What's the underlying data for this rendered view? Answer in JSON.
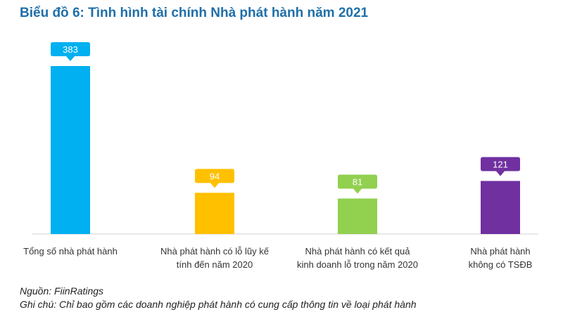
{
  "title": "Biểu đồ 6: Tình hình tài chính Nhà phát hành năm 2021",
  "source": "Nguồn: FiinRatings",
  "remark": "Ghi chú: Chỉ bao gồm các doanh nghiệp phát hành có cung cấp thông tin về loại phát hành",
  "chart_data": {
    "type": "bar",
    "title": "Biểu đồ 6: Tình hình tài chính Nhà phát hành năm 2021",
    "categories": [
      [
        "Tổng số nhà phát hành"
      ],
      [
        "Nhà phát hành có lỗ lũy kế",
        "tính đến năm 2020"
      ],
      [
        "Nhà phát hành có kết quả",
        "kinh doanh lỗ trong năm 2020"
      ],
      [
        "Nhà phát hành",
        "không có TSĐB"
      ]
    ],
    "values": [
      383,
      94,
      81,
      121
    ],
    "colors": [
      "#00b0f0",
      "#ffc000",
      "#92d050",
      "#7030a0"
    ],
    "ylim": [
      0,
      383
    ],
    "grid": false,
    "legend": "none"
  }
}
